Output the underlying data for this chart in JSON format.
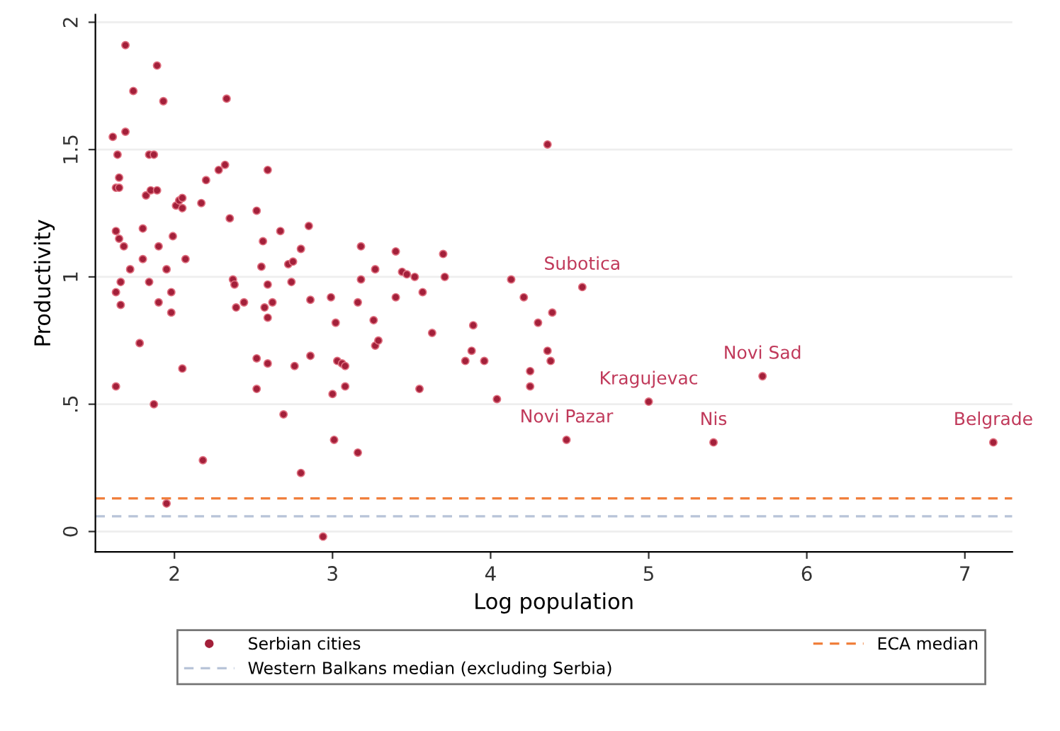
{
  "chart_data": {
    "type": "scatter",
    "xlabel": "Log population",
    "ylabel": "Productivity",
    "xlim": [
      1.5,
      7.3
    ],
    "ylim": [
      -0.08,
      2.03
    ],
    "xticks": [
      2,
      3,
      4,
      5,
      6,
      7
    ],
    "yticks": [
      0,
      {
        "value": 0.5,
        "label": ".5"
      },
      1,
      {
        "value": 1.5,
        "label": "1.5"
      },
      2
    ],
    "grid": "y",
    "legend": "bottom",
    "marker": "circle",
    "series": [
      {
        "name": "Serbian cities",
        "color": "#a3203a",
        "x": [
          1.69,
          1.61,
          1.69,
          1.74,
          1.89,
          1.93,
          2.33,
          1.64,
          1.65,
          1.63,
          1.65,
          1.84,
          1.87,
          1.82,
          1.85,
          1.89,
          1.63,
          1.65,
          1.68,
          1.8,
          1.9,
          1.99,
          2.01,
          2.03,
          2.05,
          2.05,
          2.17,
          2.2,
          2.28,
          2.32,
          2.35,
          2.59,
          2.52,
          1.72,
          1.8,
          1.95,
          2.07,
          1.63,
          1.66,
          1.66,
          1.84,
          1.9,
          1.98,
          1.98,
          2.37,
          2.38,
          2.39,
          2.44,
          2.56,
          2.55,
          2.67,
          2.59,
          2.57,
          2.62,
          2.59,
          2.72,
          2.75,
          2.8,
          2.74,
          2.85,
          2.86,
          2.99,
          3.02,
          1.63,
          1.78,
          1.87,
          2.05,
          2.52,
          2.59,
          2.52,
          2.76,
          2.86,
          2.69,
          3.0,
          3.01,
          3.03,
          3.06,
          3.08,
          3.08,
          2.18,
          2.8,
          1.95,
          2.94,
          4.36,
          3.18,
          3.27,
          3.18,
          3.4,
          3.44,
          3.47,
          3.52,
          3.4,
          3.57,
          3.7,
          3.71,
          3.16,
          3.26,
          3.27,
          3.29,
          3.63,
          3.55,
          3.16,
          3.89,
          3.88,
          3.84,
          3.96,
          4.04,
          4.13,
          4.21,
          4.3,
          4.39,
          4.36,
          4.38,
          4.25,
          4.25,
          4.48,
          4.58,
          5.0,
          5.72,
          5.41,
          7.18
        ],
        "values": [
          1.91,
          1.55,
          1.57,
          1.73,
          1.83,
          1.69,
          1.7,
          1.48,
          1.39,
          1.35,
          1.35,
          1.48,
          1.48,
          1.32,
          1.34,
          1.34,
          1.18,
          1.15,
          1.12,
          1.19,
          1.12,
          1.16,
          1.28,
          1.3,
          1.27,
          1.31,
          1.29,
          1.38,
          1.42,
          1.44,
          1.23,
          1.42,
          1.26,
          1.03,
          1.07,
          1.03,
          1.07,
          0.94,
          0.98,
          0.89,
          0.98,
          0.9,
          0.94,
          0.86,
          0.99,
          0.97,
          0.88,
          0.9,
          1.14,
          1.04,
          1.18,
          0.97,
          0.88,
          0.9,
          0.84,
          1.05,
          1.06,
          1.11,
          0.98,
          1.2,
          0.91,
          0.92,
          0.82,
          0.57,
          0.74,
          0.5,
          0.64,
          0.68,
          0.66,
          0.56,
          0.65,
          0.69,
          0.46,
          0.54,
          0.36,
          0.67,
          0.66,
          0.65,
          0.57,
          0.28,
          0.23,
          0.11,
          -0.02,
          1.52,
          1.12,
          1.03,
          0.99,
          1.1,
          1.02,
          1.01,
          1.0,
          0.92,
          0.94,
          1.09,
          1.0,
          0.9,
          0.83,
          0.73,
          0.75,
          0.78,
          0.56,
          0.31,
          0.81,
          0.71,
          0.67,
          0.67,
          0.52,
          0.99,
          0.92,
          0.82,
          0.86,
          0.71,
          0.67,
          0.63,
          0.57,
          0.36,
          0.96,
          0.51,
          0.61,
          0.35,
          0.35
        ]
      }
    ],
    "ref_lines": [
      {
        "axis": "y",
        "value": 0.13,
        "label": "ECA median",
        "color": "#f07f3c",
        "line_style": "dashed"
      },
      {
        "axis": "y",
        "value": 0.06,
        "label": "Western Balkans median (excluding Serbia)",
        "color": "#b8c4d8",
        "line_style": "dashed"
      }
    ],
    "annotations": [
      {
        "text": "Subotica",
        "x": 4.58,
        "y": 0.96
      },
      {
        "text": "Novi Pazar",
        "x": 4.48,
        "y": 0.36
      },
      {
        "text": "Kragujevac",
        "x": 5.0,
        "y": 0.51
      },
      {
        "text": "Novi Sad",
        "x": 5.72,
        "y": 0.61
      },
      {
        "text": "Nis",
        "x": 5.41,
        "y": 0.35
      },
      {
        "text": "Belgrade",
        "x": 7.18,
        "y": 0.35
      }
    ]
  }
}
